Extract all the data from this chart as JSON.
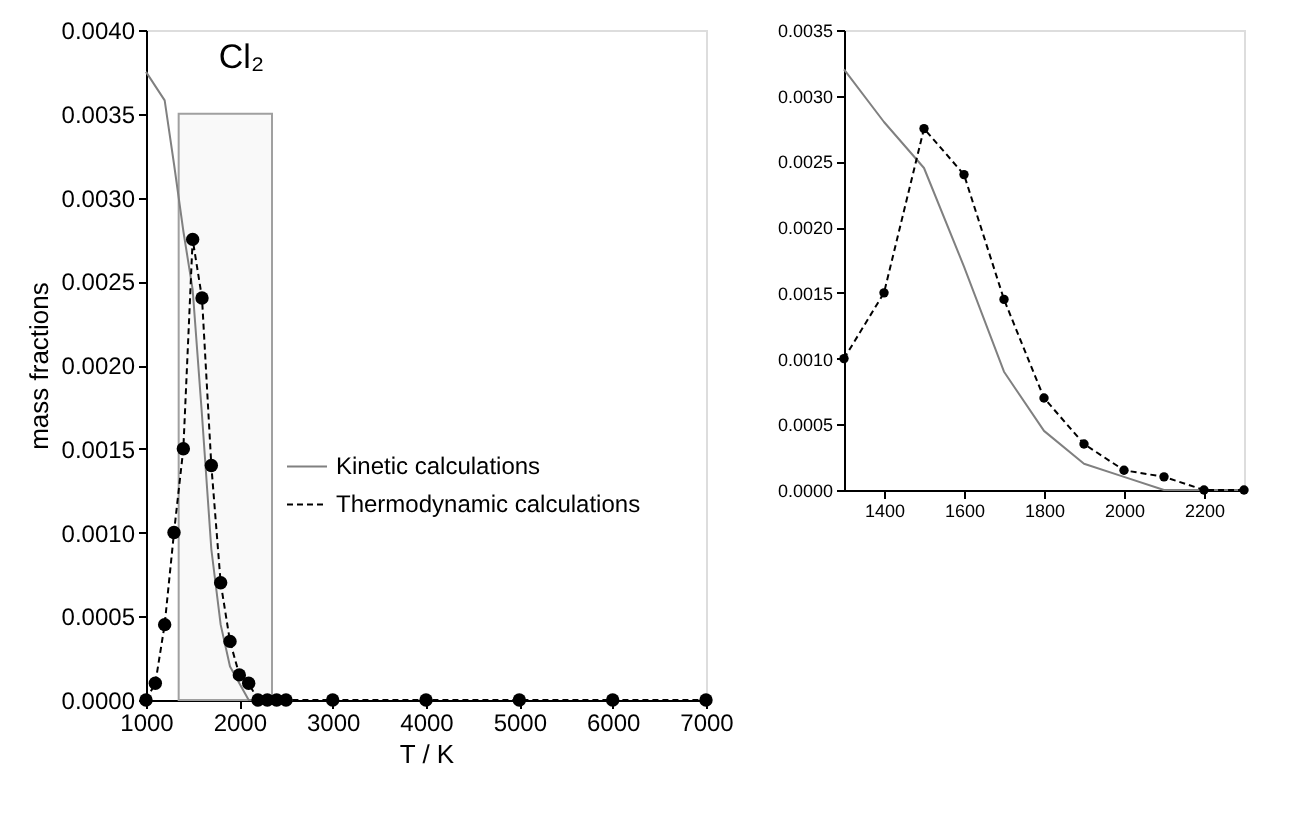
{
  "chart_data": [
    {
      "type": "line",
      "xlabel": "T / K",
      "ylabel": "mass fractions",
      "annotations": [
        "Cl₂"
      ],
      "xlim": [
        1000,
        7000
      ],
      "xticks": [
        1000,
        2000,
        3000,
        4000,
        5000,
        6000,
        7000
      ],
      "ylim": [
        0,
        0.004
      ],
      "yticks": [
        {
          "value": 0,
          "label": "0.0000"
        },
        {
          "value": 0.0005,
          "label": "0.0005"
        },
        {
          "value": 0.001,
          "label": "0.0010"
        },
        {
          "value": 0.0015,
          "label": "0.0015"
        },
        {
          "value": 0.002,
          "label": "0.0020"
        },
        {
          "value": 0.0025,
          "label": "0.0025"
        },
        {
          "value": 0.003,
          "label": "0.0030"
        },
        {
          "value": 0.0035,
          "label": "0.0035"
        },
        {
          "value": 0.004,
          "label": "0.0040"
        }
      ],
      "grid": false,
      "legend": "right",
      "bands": [
        {
          "axis": "x",
          "from": 1350,
          "to": 2350,
          "color": "#a0a0a0"
        }
      ],
      "series": [
        {
          "name": "Kinetic calculations",
          "color": "#808080",
          "marker": "none",
          "line_style": "solid",
          "x": [
            1000,
            1200,
            1300,
            1400,
            1500,
            1600,
            1700,
            1800,
            1900,
            2000,
            2100,
            2200,
            2300,
            2600
          ],
          "values": [
            0.00375,
            0.00358,
            0.0032,
            0.0028,
            0.00245,
            0.0017,
            0.0009,
            0.00045,
            0.0002,
            0.0001,
            0,
            0,
            0,
            0
          ]
        },
        {
          "name": "Thermodynamic calculations",
          "color": "#000000",
          "marker": "circle",
          "line_style": "dashed",
          "x": [
            1000,
            1100,
            1200,
            1300,
            1400,
            1500,
            1600,
            1700,
            1800,
            1900,
            2000,
            2100,
            2200,
            2300,
            2400,
            2500,
            3000,
            4000,
            5000,
            6000,
            7000
          ],
          "values": [
            0,
            0.0001,
            0.00045,
            0.001,
            0.0015,
            0.00275,
            0.0024,
            0.0014,
            0.0007,
            0.00035,
            0.00015,
            0.0001,
            0,
            0,
            0,
            0,
            0,
            0,
            0,
            0,
            0
          ]
        }
      ]
    },
    {
      "type": "line",
      "xlim": [
        1300,
        2300
      ],
      "xticks": [
        1400,
        1600,
        1800,
        2000,
        2200
      ],
      "ylim": [
        0,
        0.0035
      ],
      "yticks": [
        {
          "value": 0,
          "label": "0.0000"
        },
        {
          "value": 0.0005,
          "label": "0.0005"
        },
        {
          "value": 0.001,
          "label": "0.0010"
        },
        {
          "value": 0.0015,
          "label": "0.0015"
        },
        {
          "value": 0.002,
          "label": "0.0020"
        },
        {
          "value": 0.0025,
          "label": "0.0025"
        },
        {
          "value": 0.003,
          "label": "0.0030"
        },
        {
          "value": 0.0035,
          "label": "0.0035"
        }
      ],
      "grid": false,
      "legend": false,
      "series": [
        {
          "color": "#808080",
          "marker": "none",
          "line_style": "solid",
          "x": [
            1300,
            1400,
            1500,
            1600,
            1700,
            1800,
            1900,
            2000,
            2100,
            2200,
            2300
          ],
          "values": [
            0.0032,
            0.0028,
            0.00245,
            0.0017,
            0.0009,
            0.00045,
            0.0002,
            0.0001,
            0,
            0,
            0
          ]
        },
        {
          "color": "#000000",
          "marker": "circle",
          "line_style": "dashed",
          "x": [
            1300,
            1400,
            1500,
            1600,
            1700,
            1800,
            1900,
            2000,
            2100,
            2200,
            2300
          ],
          "values": [
            0.001,
            0.0015,
            0.00275,
            0.0024,
            0.00145,
            0.0007,
            0.00035,
            0.00015,
            0.0001,
            0,
            0
          ]
        }
      ]
    }
  ]
}
